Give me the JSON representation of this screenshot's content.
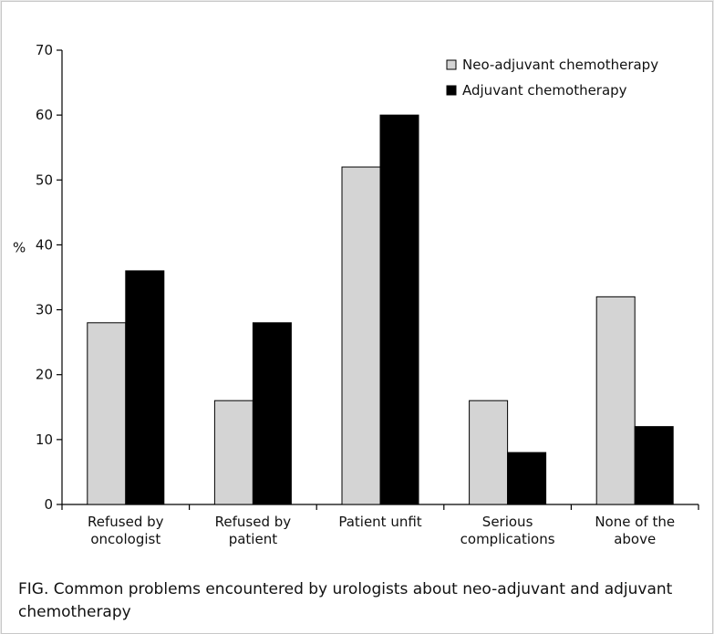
{
  "caption": "FIG.  Common problems encountered by urologists about neo-adjuvant and adjuvant chemotherapy",
  "chart_data": {
    "type": "bar",
    "title": "",
    "xlabel": "",
    "ylabel": "%",
    "ylim": [
      0,
      70
    ],
    "yticks": [
      0,
      10,
      20,
      30,
      40,
      50,
      60,
      70
    ],
    "grid": false,
    "legend_position": "top-right",
    "categories": [
      [
        "Refused by",
        "oncologist"
      ],
      [
        "Refused by",
        "patient"
      ],
      [
        "Patient unfit"
      ],
      [
        "Serious",
        "complications"
      ],
      [
        "None of the",
        "above"
      ]
    ],
    "series": [
      {
        "name": "Neo-adjuvant chemotherapy",
        "color": "#d4d4d4",
        "values": [
          28,
          16,
          52,
          16,
          32
        ]
      },
      {
        "name": "Adjuvant chemotherapy",
        "color": "#000000",
        "values": [
          36,
          28,
          60,
          8,
          12
        ]
      }
    ]
  }
}
